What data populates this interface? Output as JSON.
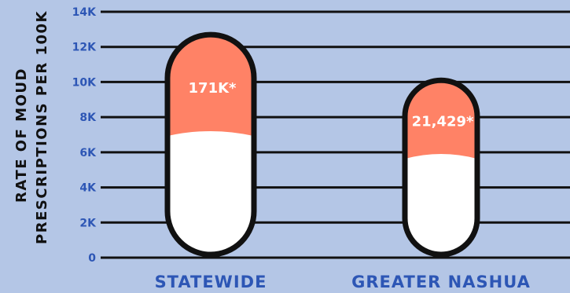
{
  "chart_data": {
    "type": "bar",
    "title": "",
    "xlabel": "",
    "ylabel_lines": [
      "RATE OF MOUD",
      "PRESCRIPTIONS PER 100K"
    ],
    "categories": [
      "STATEWIDE",
      "GREATER NASHUA"
    ],
    "ylim": [
      0,
      14000
    ],
    "yticks": [
      0,
      2000,
      4000,
      6000,
      8000,
      10000,
      12000,
      14000
    ],
    "ytick_labels": [
      "0",
      "2K",
      "4K",
      "6K",
      "8K",
      "10K",
      "12K",
      "14K"
    ],
    "grid": true,
    "legend": "none",
    "series": [
      {
        "values": [
          12700,
          10100
        ],
        "data_labels": [
          "171K*",
          "21,429*"
        ],
        "fill_levels": [
          7000,
          5700
        ]
      }
    ],
    "colors": {
      "background": "#b4c6e6",
      "top_fill": "#ff8266",
      "bottom_fill": "#ffffff",
      "outline": "#111111",
      "gridline": "#111111",
      "tick_text": "#2d56b5"
    }
  }
}
